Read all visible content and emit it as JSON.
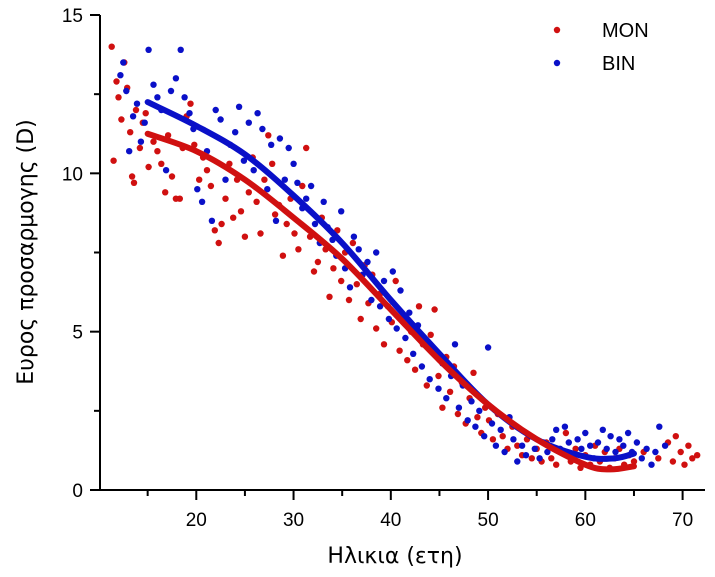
{
  "chart_data": {
    "type": "scatter",
    "title": "",
    "xlabel": "Ηλικια (ετη)",
    "ylabel": "Ευρος προσαρμογης (D)",
    "xlim": [
      10.1,
      72.2
    ],
    "ylim": [
      0,
      15
    ],
    "x_ticks": [
      20,
      30,
      40,
      50,
      60,
      70
    ],
    "x_minor_ticks": [
      15,
      25,
      35,
      45,
      55,
      65
    ],
    "y_ticks": [
      0,
      5,
      10,
      15
    ],
    "y_minor_ticks": [
      2.5,
      7.5,
      12.5
    ],
    "grid": false,
    "legend": {
      "position": "top-right",
      "entries": [
        {
          "name": "MON",
          "color": "#d01010"
        },
        {
          "name": "BIN",
          "color": "#0a10c8"
        }
      ]
    },
    "series": [
      {
        "name": "MON",
        "color": "#d01010",
        "points": [
          [
            11.3,
            14.0
          ],
          [
            11.5,
            10.4
          ],
          [
            11.8,
            12.9
          ],
          [
            12.0,
            12.4
          ],
          [
            12.3,
            11.7
          ],
          [
            12.6,
            13.5
          ],
          [
            12.9,
            12.7
          ],
          [
            13.2,
            11.3
          ],
          [
            13.4,
            9.9
          ],
          [
            13.6,
            9.7
          ],
          [
            13.8,
            12.0
          ],
          [
            14.2,
            10.8
          ],
          [
            14.5,
            11.6
          ],
          [
            14.8,
            11.9
          ],
          [
            15.1,
            10.2
          ],
          [
            15.6,
            11.0
          ],
          [
            16.0,
            10.7
          ],
          [
            16.4,
            10.3
          ],
          [
            16.8,
            9.4
          ],
          [
            17.1,
            11.2
          ],
          [
            17.5,
            9.9
          ],
          [
            17.9,
            9.2
          ],
          [
            18.3,
            9.2
          ],
          [
            18.6,
            10.8
          ],
          [
            19.0,
            11.8
          ],
          [
            19.4,
            12.2
          ],
          [
            19.8,
            10.9
          ],
          [
            20.3,
            9.8
          ],
          [
            20.7,
            10.5
          ],
          [
            21.1,
            10.1
          ],
          [
            21.5,
            9.6
          ],
          [
            21.9,
            8.2
          ],
          [
            22.3,
            7.8
          ],
          [
            22.6,
            8.4
          ],
          [
            23.0,
            9.2
          ],
          [
            23.4,
            10.3
          ],
          [
            23.8,
            8.6
          ],
          [
            24.2,
            9.8
          ],
          [
            24.6,
            8.8
          ],
          [
            25.0,
            8.0
          ],
          [
            25.4,
            9.4
          ],
          [
            25.8,
            10.5
          ],
          [
            26.2,
            9.1
          ],
          [
            26.6,
            8.1
          ],
          [
            27.0,
            9.8
          ],
          [
            27.4,
            11.2
          ],
          [
            27.8,
            10.3
          ],
          [
            28.1,
            8.7
          ],
          [
            28.5,
            9.0
          ],
          [
            28.9,
            7.4
          ],
          [
            29.3,
            8.4
          ],
          [
            29.7,
            9.2
          ],
          [
            30.1,
            8.1
          ],
          [
            30.5,
            7.6
          ],
          [
            30.9,
            9.6
          ],
          [
            31.3,
            10.8
          ],
          [
            31.7,
            8.0
          ],
          [
            32.1,
            6.9
          ],
          [
            32.5,
            7.2
          ],
          [
            32.9,
            8.6
          ],
          [
            33.3,
            7.6
          ],
          [
            33.7,
            6.1
          ],
          [
            34.1,
            7.0
          ],
          [
            34.5,
            8.2
          ],
          [
            34.9,
            6.6
          ],
          [
            35.3,
            7.5
          ],
          [
            35.7,
            6.0
          ],
          [
            36.1,
            7.8
          ],
          [
            36.5,
            6.5
          ],
          [
            36.9,
            5.4
          ],
          [
            37.3,
            7.1
          ],
          [
            37.7,
            5.9
          ],
          [
            38.1,
            6.8
          ],
          [
            38.5,
            5.1
          ],
          [
            38.9,
            6.2
          ],
          [
            39.3,
            4.6
          ],
          [
            39.7,
            5.8
          ],
          [
            40.1,
            5.3
          ],
          [
            40.5,
            6.6
          ],
          [
            40.9,
            4.4
          ],
          [
            41.3,
            5.5
          ],
          [
            41.7,
            4.1
          ],
          [
            42.1,
            5.0
          ],
          [
            42.5,
            3.8
          ],
          [
            42.9,
            5.8
          ],
          [
            43.3,
            4.6
          ],
          [
            43.7,
            3.3
          ],
          [
            44.1,
            4.9
          ],
          [
            44.5,
            5.7
          ],
          [
            44.9,
            3.6
          ],
          [
            45.3,
            2.6
          ],
          [
            45.7,
            4.2
          ],
          [
            46.1,
            3.1
          ],
          [
            46.5,
            3.9
          ],
          [
            46.9,
            2.4
          ],
          [
            47.3,
            3.4
          ],
          [
            47.7,
            2.1
          ],
          [
            48.1,
            2.9
          ],
          [
            48.5,
            3.7
          ],
          [
            48.9,
            2.3
          ],
          [
            49.3,
            1.8
          ],
          [
            49.7,
            2.6
          ],
          [
            50.1,
            2.2
          ],
          [
            50.5,
            1.6
          ],
          [
            51.0,
            2.4
          ],
          [
            51.5,
            1.7
          ],
          [
            52.0,
            1.3
          ],
          [
            52.5,
            2.0
          ],
          [
            53.0,
            1.4
          ],
          [
            53.5,
            1.1
          ],
          [
            54.0,
            1.6
          ],
          [
            54.5,
            1.0
          ],
          [
            55.0,
            1.3
          ],
          [
            55.5,
            0.9
          ],
          [
            56.0,
            1.5
          ],
          [
            56.5,
            1.0
          ],
          [
            57.0,
            0.8
          ],
          [
            57.5,
            1.2
          ],
          [
            58.0,
            1.8
          ],
          [
            58.5,
            0.9
          ],
          [
            59.0,
            1.3
          ],
          [
            59.5,
            0.7
          ],
          [
            60.0,
            1.1
          ],
          [
            60.5,
            0.8
          ],
          [
            61.0,
            1.4
          ],
          [
            61.5,
            0.9
          ],
          [
            62.0,
            1.2
          ],
          [
            62.5,
            0.7
          ],
          [
            63.0,
            1.0
          ],
          [
            63.5,
            1.3
          ],
          [
            64.0,
            0.8
          ],
          [
            64.5,
            1.1
          ],
          [
            65.0,
            0.9
          ],
          [
            66.0,
            1.2
          ],
          [
            67.5,
            1.0
          ],
          [
            68.5,
            1.5
          ],
          [
            69.0,
            0.9
          ],
          [
            69.3,
            1.7
          ],
          [
            69.8,
            1.2
          ],
          [
            70.2,
            0.8
          ],
          [
            70.6,
            1.4
          ],
          [
            71.0,
            1.0
          ],
          [
            71.5,
            1.1
          ]
        ],
        "fit": [
          [
            15,
            11.25
          ],
          [
            20,
            10.7
          ],
          [
            25,
            9.8
          ],
          [
            30,
            8.6
          ],
          [
            35,
            7.3
          ],
          [
            40,
            5.7
          ],
          [
            45,
            4.1
          ],
          [
            50,
            2.7
          ],
          [
            55,
            1.6
          ],
          [
            60,
            0.8
          ],
          [
            62.5,
            0.65
          ],
          [
            65,
            0.75
          ]
        ]
      },
      {
        "name": "BIN",
        "color": "#0a10c8",
        "points": [
          [
            12.2,
            13.1
          ],
          [
            12.5,
            13.5
          ],
          [
            12.8,
            12.6
          ],
          [
            13.1,
            10.7
          ],
          [
            13.5,
            11.8
          ],
          [
            13.9,
            12.2
          ],
          [
            14.3,
            11.0
          ],
          [
            14.7,
            11.6
          ],
          [
            15.1,
            13.9
          ],
          [
            15.6,
            12.8
          ],
          [
            16.0,
            12.4
          ],
          [
            16.4,
            12.0
          ],
          [
            16.9,
            10.1
          ],
          [
            17.4,
            12.6
          ],
          [
            17.9,
            13.0
          ],
          [
            18.4,
            13.9
          ],
          [
            18.8,
            12.4
          ],
          [
            19.3,
            11.9
          ],
          [
            19.7,
            11.4
          ],
          [
            20.1,
            9.5
          ],
          [
            20.6,
            9.1
          ],
          [
            21.1,
            10.7
          ],
          [
            21.6,
            8.5
          ],
          [
            22.0,
            12.0
          ],
          [
            22.5,
            11.7
          ],
          [
            23.0,
            9.8
          ],
          [
            23.5,
            10.9
          ],
          [
            24.0,
            11.3
          ],
          [
            24.4,
            12.1
          ],
          [
            24.9,
            10.4
          ],
          [
            25.4,
            11.6
          ],
          [
            25.9,
            10.1
          ],
          [
            26.3,
            11.9
          ],
          [
            26.8,
            11.4
          ],
          [
            27.3,
            9.5
          ],
          [
            27.7,
            10.9
          ],
          [
            28.2,
            8.5
          ],
          [
            28.6,
            11.1
          ],
          [
            29.1,
            9.8
          ],
          [
            29.5,
            10.8
          ],
          [
            30.0,
            10.3
          ],
          [
            30.4,
            9.7
          ],
          [
            30.9,
            8.9
          ],
          [
            31.3,
            9.2
          ],
          [
            31.8,
            9.6
          ],
          [
            32.2,
            8.4
          ],
          [
            32.7,
            7.8
          ],
          [
            33.1,
            9.1
          ],
          [
            33.5,
            8.3
          ],
          [
            34.0,
            7.9
          ],
          [
            34.4,
            7.4
          ],
          [
            34.9,
            8.8
          ],
          [
            35.3,
            7.0
          ],
          [
            35.8,
            6.4
          ],
          [
            36.2,
            8.0
          ],
          [
            36.7,
            7.6
          ],
          [
            37.1,
            6.8
          ],
          [
            37.6,
            7.2
          ],
          [
            38.0,
            6.0
          ],
          [
            38.5,
            7.5
          ],
          [
            38.9,
            5.8
          ],
          [
            39.3,
            6.6
          ],
          [
            39.8,
            5.4
          ],
          [
            40.2,
            6.9
          ],
          [
            40.6,
            5.1
          ],
          [
            41.0,
            6.3
          ],
          [
            41.5,
            4.8
          ],
          [
            41.9,
            5.6
          ],
          [
            42.3,
            4.3
          ],
          [
            42.8,
            5.2
          ],
          [
            43.2,
            3.9
          ],
          [
            43.6,
            4.7
          ],
          [
            44.0,
            3.5
          ],
          [
            44.5,
            4.4
          ],
          [
            44.9,
            3.2
          ],
          [
            45.3,
            4.0
          ],
          [
            45.7,
            2.9
          ],
          [
            46.2,
            3.6
          ],
          [
            46.6,
            4.6
          ],
          [
            47.0,
            2.6
          ],
          [
            47.4,
            3.3
          ],
          [
            47.9,
            2.2
          ],
          [
            48.3,
            2.8
          ],
          [
            48.7,
            2.0
          ],
          [
            49.1,
            2.5
          ],
          [
            49.6,
            1.7
          ],
          [
            50.0,
            4.5
          ],
          [
            50.4,
            2.1
          ],
          [
            50.8,
            1.4
          ],
          [
            51.3,
            1.9
          ],
          [
            51.7,
            1.2
          ],
          [
            52.2,
            2.3
          ],
          [
            52.6,
            1.6
          ],
          [
            53.0,
            0.9
          ],
          [
            53.5,
            1.4
          ],
          [
            53.9,
            1.1
          ],
          [
            54.4,
            1.7
          ],
          [
            54.8,
            1.3
          ],
          [
            55.3,
            1.0
          ],
          [
            55.7,
            1.5
          ],
          [
            56.1,
            1.2
          ],
          [
            56.6,
            1.6
          ],
          [
            57.0,
            1.9
          ],
          [
            57.4,
            1.3
          ],
          [
            57.9,
            2.0
          ],
          [
            58.3,
            1.5
          ],
          [
            58.7,
            1.1
          ],
          [
            59.2,
            1.6
          ],
          [
            59.6,
            1.3
          ],
          [
            60.0,
            1.8
          ],
          [
            60.5,
            1.4
          ],
          [
            60.9,
            1.0
          ],
          [
            61.3,
            1.5
          ],
          [
            61.8,
            1.9
          ],
          [
            62.2,
            1.3
          ],
          [
            62.6,
            1.7
          ],
          [
            63.1,
            1.2
          ],
          [
            63.5,
            1.6
          ],
          [
            63.9,
            1.4
          ],
          [
            64.4,
            1.8
          ],
          [
            64.8,
            1.2
          ],
          [
            65.3,
            1.5
          ],
          [
            65.8,
            1.0
          ],
          [
            66.3,
            1.3
          ],
          [
            66.8,
            0.8
          ],
          [
            67.2,
            1.2
          ],
          [
            67.6,
            2.0
          ],
          [
            68.2,
            1.4
          ]
        ],
        "fit": [
          [
            15,
            12.25
          ],
          [
            20,
            11.5
          ],
          [
            25,
            10.6
          ],
          [
            30,
            9.3
          ],
          [
            35,
            7.8
          ],
          [
            40,
            6.0
          ],
          [
            45,
            4.3
          ],
          [
            50,
            2.7
          ],
          [
            55,
            1.6
          ],
          [
            60,
            1.05
          ],
          [
            63,
            1.0
          ],
          [
            65,
            1.15
          ]
        ]
      }
    ]
  }
}
